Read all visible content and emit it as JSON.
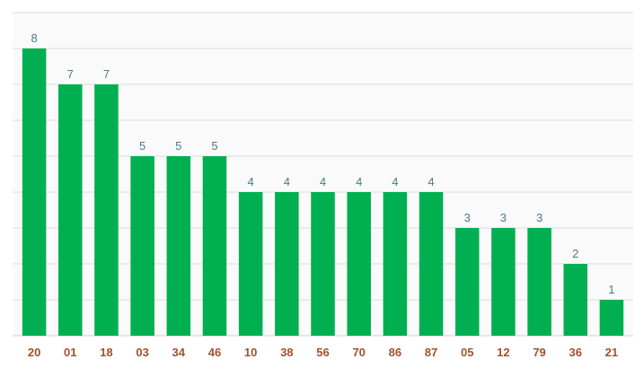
{
  "chart_data": {
    "type": "bar",
    "title": "",
    "xlabel": "",
    "ylabel": "",
    "categories": [
      "20",
      "01",
      "18",
      "03",
      "34",
      "46",
      "10",
      "38",
      "56",
      "70",
      "86",
      "87",
      "05",
      "12",
      "79",
      "36",
      "21"
    ],
    "values": [
      8,
      7,
      7,
      5,
      5,
      5,
      4,
      4,
      4,
      4,
      4,
      4,
      3,
      3,
      3,
      2,
      1
    ],
    "ylim": [
      0,
      9
    ],
    "grid": true,
    "legend": "none",
    "colors": {
      "bar": "#00b050",
      "data_label": "#4a7c8c",
      "tick_label": "#a0522d",
      "grid": "#dcdcdc",
      "background": "#fafafa"
    }
  }
}
